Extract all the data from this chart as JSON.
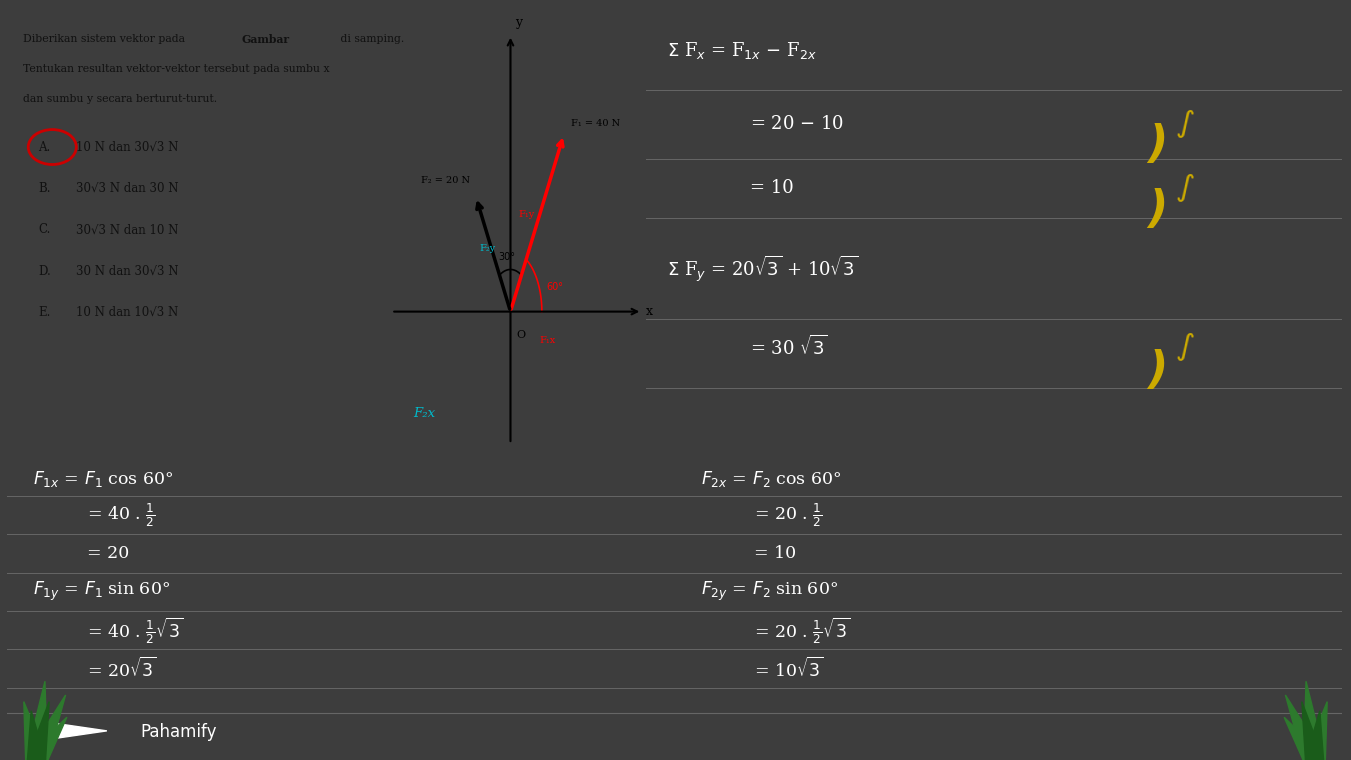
{
  "bg_color": "#3d3d3d",
  "white_box_color": "#ffffff",
  "text_color_white": "#ffffff",
  "text_color_black": "#111111",
  "text_color_red": "#cc0000",
  "text_color_yellow": "#ccaa00",
  "text_color_cyan": "#00bbcc",
  "title_line1": "Diberikan sistem vektor pada ",
  "title_bold": "Gambar",
  "title_line1b": " di samping.",
  "title_line2": "Tentukan resultan vektor-vektor tersebut pada sumbu χ",
  "title_line3": "dan sumbu y secara berturut-turut.",
  "choices": [
    "10 N dan 30√3 N",
    "30√3 N dan 30 N",
    "30√3 N dan 10 N",
    "30 N dan 30√3 N",
    "10 N dan 10√3 N"
  ],
  "choice_labels": [
    "A.",
    "B.",
    "C.",
    "D.",
    "E."
  ],
  "pahamify_text": "Pahamify",
  "line_color": "#555555",
  "separator_color": "#666666"
}
